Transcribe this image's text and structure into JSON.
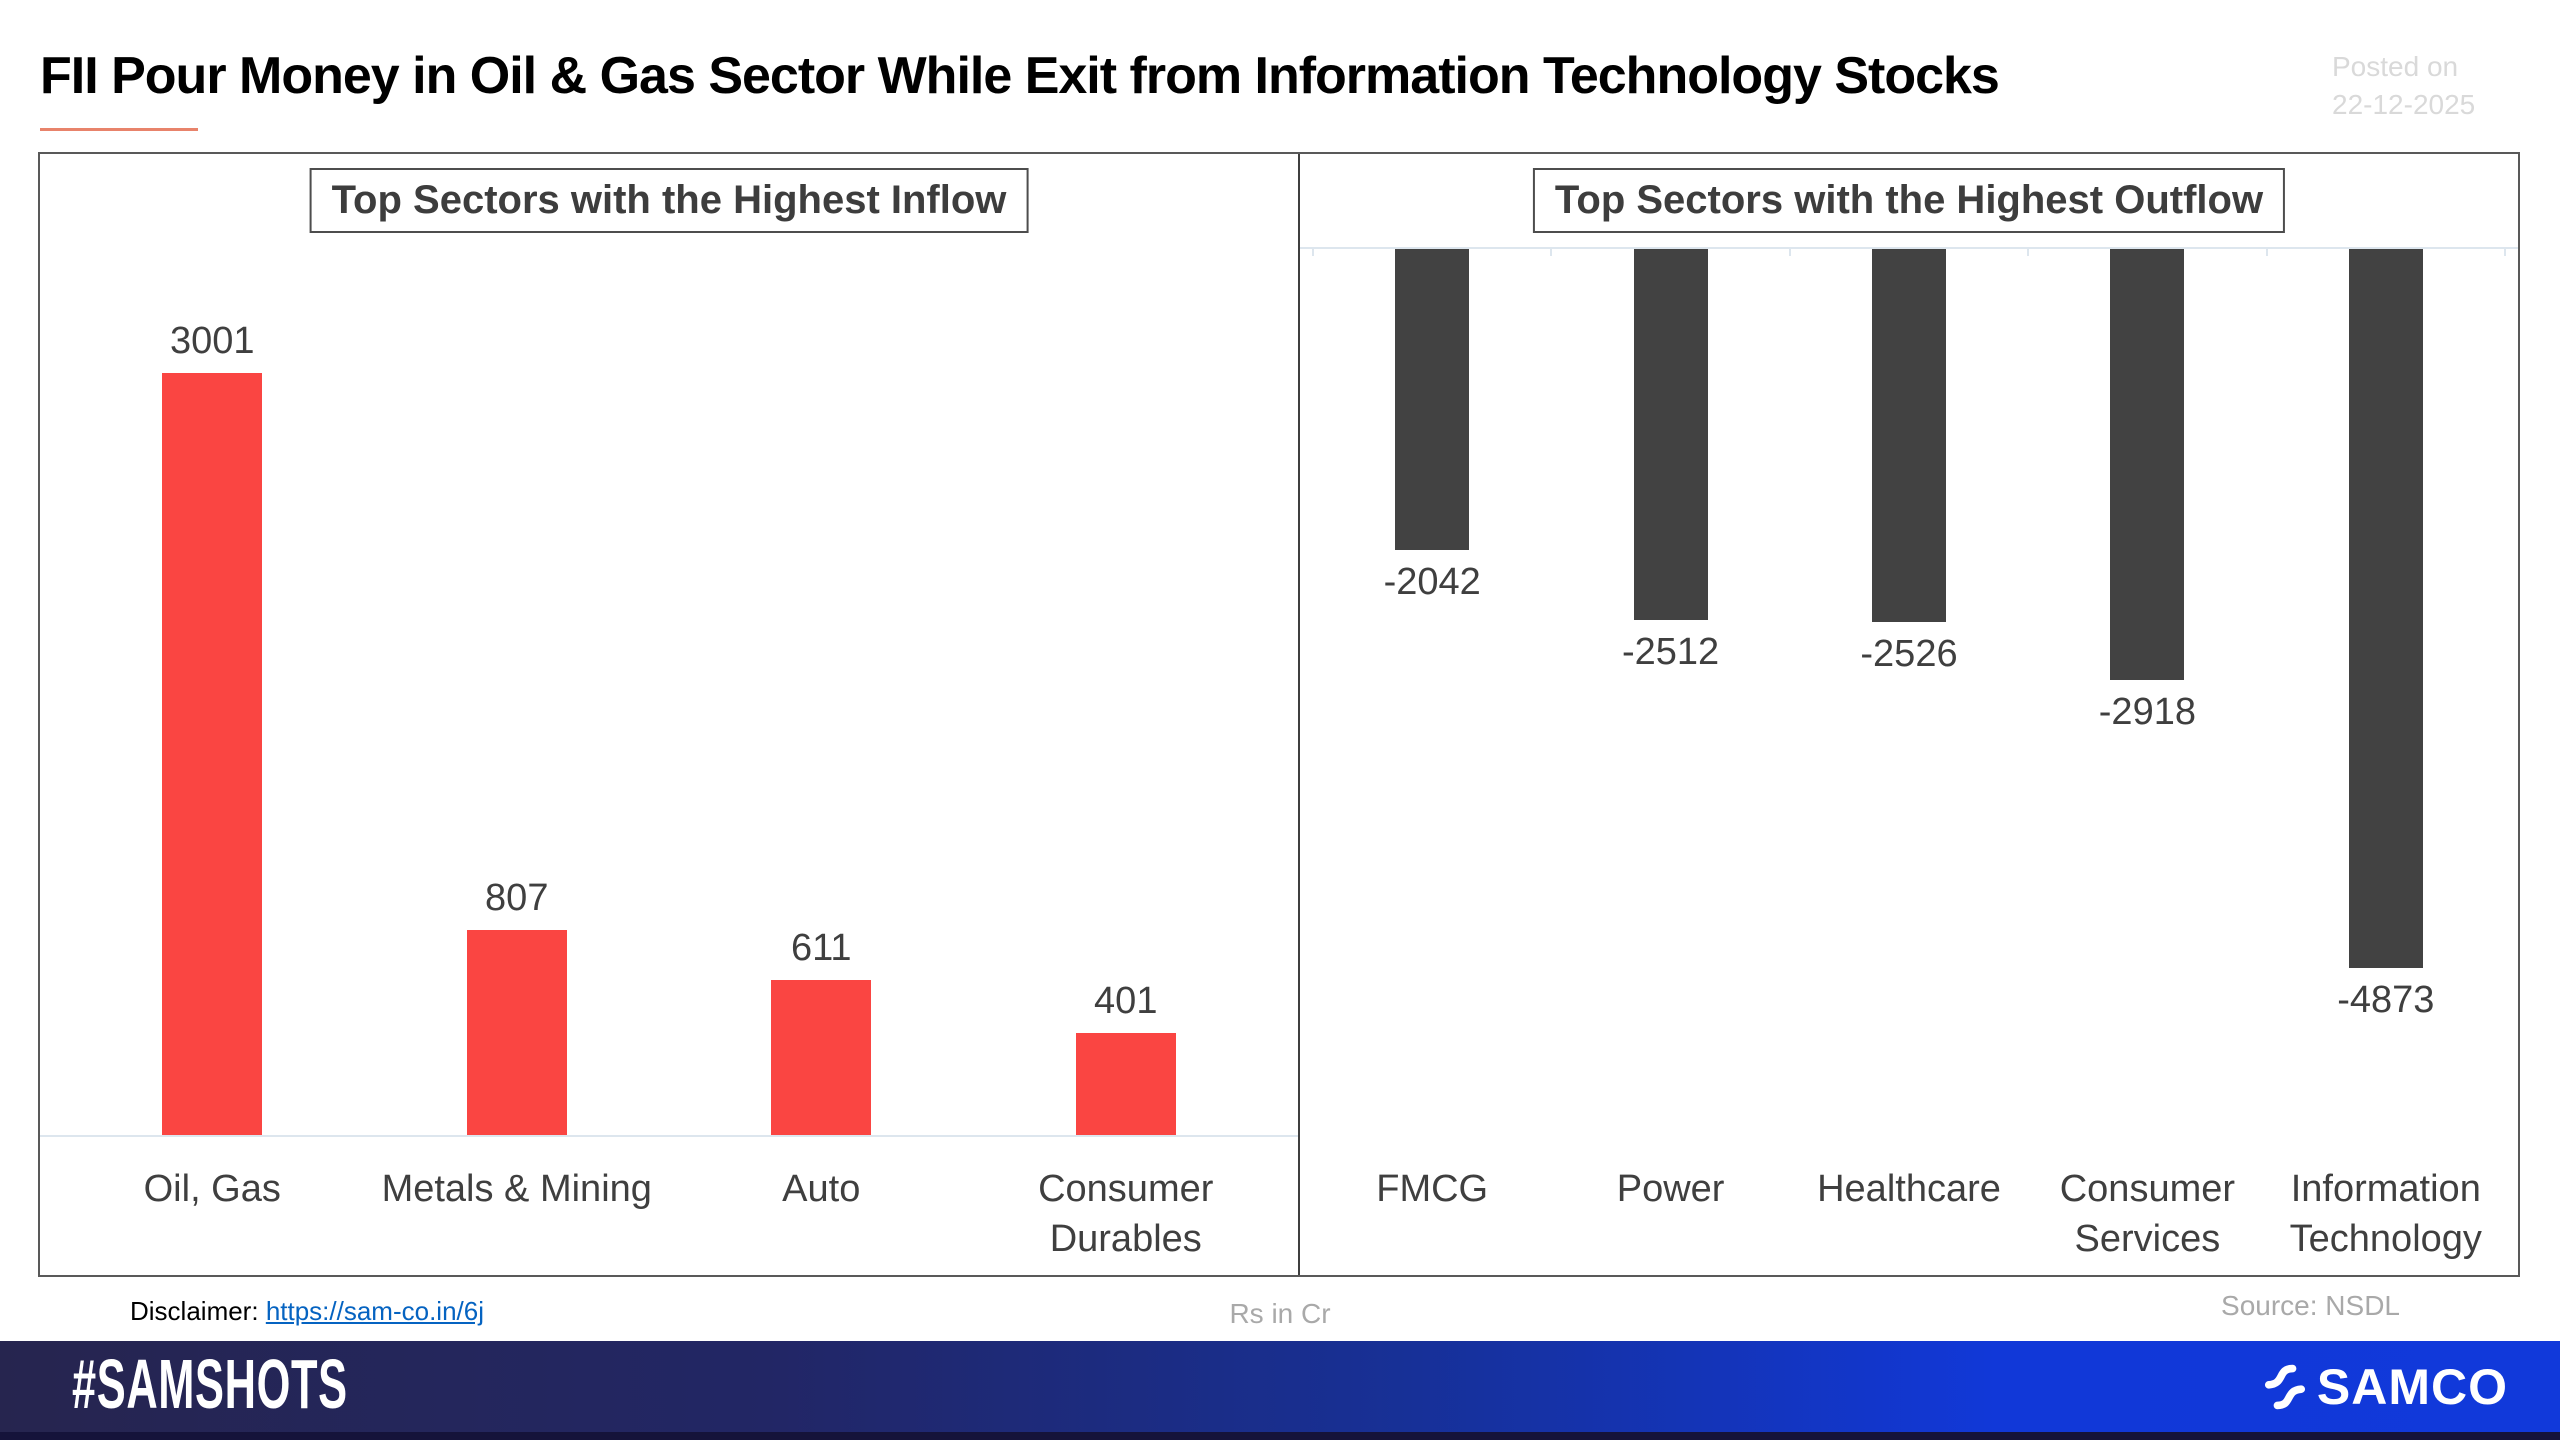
{
  "header": {
    "title": "FII Pour Money in Oil & Gas Sector While Exit from Information Technology Stocks",
    "posted_line1": "Posted on",
    "posted_line2": "22-12-2025"
  },
  "chart_data": [
    {
      "type": "bar",
      "title": "Top Sectors with the Highest Inflow",
      "categories": [
        "Oil, Gas",
        "Metals & Mining",
        "Auto",
        "Consumer Durables"
      ],
      "categories_display": [
        "Oil, Gas",
        "Metals & Mining",
        "Auto",
        "Consumer\nDurables"
      ],
      "values": [
        3001,
        807,
        611,
        401
      ],
      "bar_color": "#FA4542",
      "ylim": [
        0,
        3300
      ],
      "grid": false,
      "value_labels": true,
      "unit": "Rs in Cr",
      "legend": "none"
    },
    {
      "type": "bar",
      "title": "Top Sectors with the Highest Outflow",
      "categories": [
        "FMCG",
        "Power",
        "Healthcare",
        "Consumer Services",
        "Information Technology"
      ],
      "categories_display": [
        "FMCG",
        "Power",
        "Healthcare",
        "Consumer\nServices",
        "Information\nTechnology"
      ],
      "values": [
        -2042,
        -2512,
        -2526,
        -2918,
        -4873
      ],
      "bar_color": "#424242",
      "ylim": [
        -5300,
        0
      ],
      "grid": false,
      "value_labels": true,
      "unit": "Rs in Cr",
      "legend": "none"
    }
  ],
  "footnotes": {
    "disclaimer_label": "Disclaimer:",
    "disclaimer_link": "https://sam-co.in/6j",
    "unit_note": "Rs in Cr",
    "source": "Source: NSDL"
  },
  "footer": {
    "hashtag": "#SAMSHOTS",
    "brand": "SAMCO"
  },
  "colors": {
    "inflow_bar": "#FA4542",
    "outflow_bar": "#424242",
    "accent_underline": "#E8836B",
    "link_blue": "#0563C1",
    "muted_text": "#A9A9A9",
    "footer_navy": "#26254F",
    "footer_blue": "#1138D8"
  }
}
